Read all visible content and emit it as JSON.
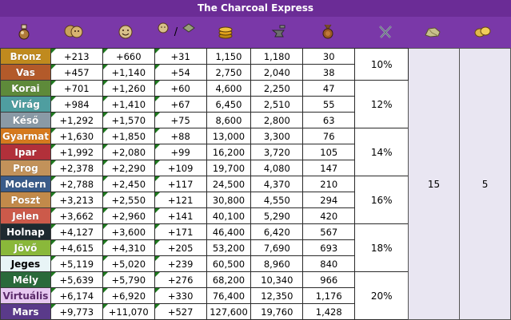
{
  "window": {
    "title": "The Charcoal Express"
  },
  "header_icons": [
    {
      "name": "potion-icon",
      "color": "#b07a3a"
    },
    {
      "name": "people-icon",
      "color": "#c9a25a"
    },
    {
      "name": "happy-face-icon",
      "color": "#d8c08a"
    },
    {
      "name": "face-gem-icon",
      "color": "#d8c08a",
      "separator": "/"
    },
    {
      "name": "coins-icon",
      "color": "#e0a11a"
    },
    {
      "name": "anvil-hammer-icon",
      "color": "#6e6e6e"
    },
    {
      "name": "medal-icon",
      "color": "#9c5a24"
    },
    {
      "name": "crossed-swords-icon",
      "color": "#9aa3b3"
    },
    {
      "name": "resources-icon",
      "color": "#c8c08c"
    },
    {
      "name": "goods-icon",
      "color": "#e0b84a"
    }
  ],
  "rows": [
    {
      "age": "Bronz",
      "color": "#c08a1e",
      "c1": "+213",
      "c2": "+660",
      "c3": "+31",
      "c4": "1,150",
      "c5": "1,180",
      "c6": "30"
    },
    {
      "age": "Vas",
      "color": "#b35a2a",
      "c1": "+457",
      "c2": "+1,140",
      "c3": "+54",
      "c4": "2,750",
      "c5": "2,040",
      "c6": "38"
    },
    {
      "age": "Korai",
      "color": "#5e8a3a",
      "c1": "+701",
      "c2": "+1,260",
      "c3": "+60",
      "c4": "4,600",
      "c5": "2,250",
      "c6": "47"
    },
    {
      "age": "Virág",
      "color": "#4f9ea0",
      "c1": "+984",
      "c2": "+1,410",
      "c3": "+67",
      "c4": "6,450",
      "c5": "2,510",
      "c6": "55"
    },
    {
      "age": "Késő",
      "color": "#8a9aa6",
      "c1": "+1,292",
      "c2": "+1,570",
      "c3": "+75",
      "c4": "8,600",
      "c5": "2,800",
      "c6": "63"
    },
    {
      "age": "Gyarmat",
      "color": "#d67a1e",
      "c1": "+1,630",
      "c2": "+1,850",
      "c3": "+88",
      "c4": "13,000",
      "c5": "3,300",
      "c6": "76"
    },
    {
      "age": "Ipar",
      "color": "#b2303a",
      "c1": "+1,992",
      "c2": "+2,080",
      "c3": "+99",
      "c4": "16,200",
      "c5": "3,720",
      "c6": "105"
    },
    {
      "age": "Prog",
      "color": "#c2925a",
      "c1": "+2,378",
      "c2": "+2,290",
      "c3": "+109",
      "c4": "19,700",
      "c5": "4,080",
      "c6": "147"
    },
    {
      "age": "Modern",
      "color": "#3a5c8a",
      "c1": "+2,788",
      "c2": "+2,450",
      "c3": "+117",
      "c4": "24,500",
      "c5": "4,370",
      "c6": "210"
    },
    {
      "age": "Poszt",
      "color": "#c28a4a",
      "c1": "+3,213",
      "c2": "+2,550",
      "c3": "+121",
      "c4": "30,800",
      "c5": "4,550",
      "c6": "294"
    },
    {
      "age": "Jelen",
      "color": "#cc5a4a",
      "c1": "+3,662",
      "c2": "+2,960",
      "c3": "+141",
      "c4": "40,100",
      "c5": "5,290",
      "c6": "420"
    },
    {
      "age": "Holnap",
      "color": "#1e2a30",
      "c1": "+4,127",
      "c2": "+3,600",
      "c3": "+171",
      "c4": "46,400",
      "c5": "6,420",
      "c6": "567"
    },
    {
      "age": "Jövő",
      "color": "#8ab83a",
      "c1": "+4,615",
      "c2": "+4,310",
      "c3": "+205",
      "c4": "53,200",
      "c5": "7,690",
      "c6": "693"
    },
    {
      "age": "Jeges",
      "color": "#e8f4f6",
      "text_color": "#000000",
      "c1": "+5,119",
      "c2": "+5,020",
      "c3": "+239",
      "c4": "60,500",
      "c5": "8,960",
      "c6": "840"
    },
    {
      "age": "Mély",
      "color": "#2a6a3a",
      "c1": "+5,639",
      "c2": "+5,790",
      "c3": "+276",
      "c4": "68,200",
      "c5": "10,340",
      "c6": "966"
    },
    {
      "age": "Virtuális",
      "color": "#e6c8f0",
      "text_color": "#5a2a6a",
      "c1": "+6,174",
      "c2": "+6,920",
      "c3": "+330",
      "c4": "76,400",
      "c5": "12,350",
      "c6": "1,176"
    },
    {
      "age": "Mars",
      "color": "#5a3a8a",
      "c1": "+9,773",
      "c2": "+11,070",
      "c3": "+527",
      "c4": "127,600",
      "c5": "19,760",
      "c6": "1,428"
    }
  ],
  "percent_groups": [
    {
      "rows": 2,
      "value": "10%"
    },
    {
      "rows": 3,
      "value": "12%"
    },
    {
      "rows": 3,
      "value": "14%"
    },
    {
      "rows": 3,
      "value": "16%"
    },
    {
      "rows": 3,
      "value": "18%"
    },
    {
      "rows": 3,
      "value": "20%"
    }
  ],
  "col9_value": "15",
  "col10_value": "5"
}
